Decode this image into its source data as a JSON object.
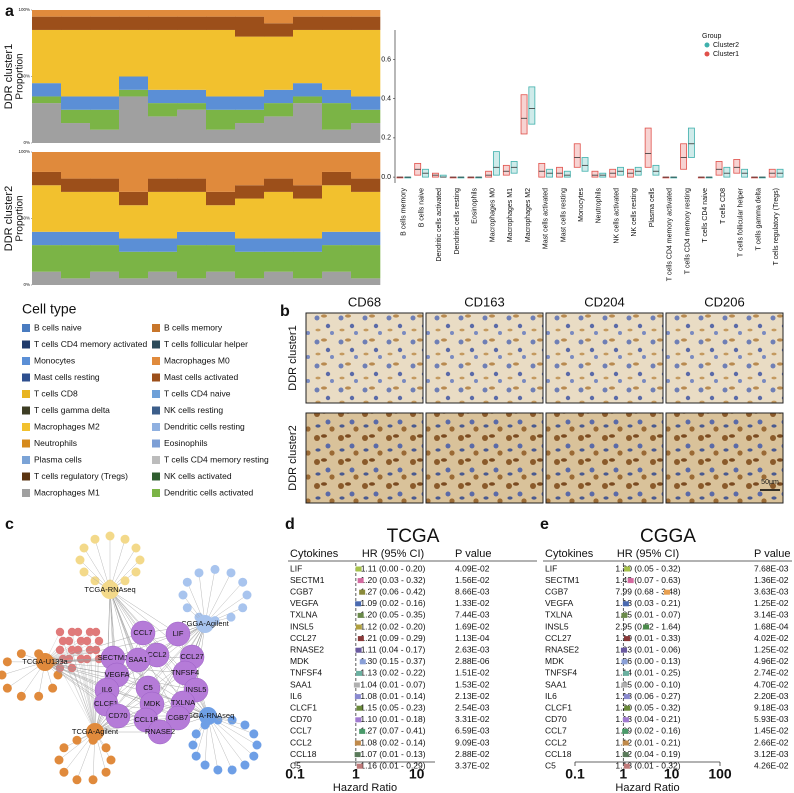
{
  "panel_labels": [
    "a",
    "b",
    "c",
    "d",
    "e"
  ],
  "cell_type_legend": {
    "title": "Cell type",
    "items": [
      {
        "name": "B cells naive",
        "color": "#4a7cc0"
      },
      {
        "name": "B cells memory",
        "color": "#c8762b"
      },
      {
        "name": "T cells CD4 memory activated",
        "color": "#1f3a6b"
      },
      {
        "name": "T cells follicular helper",
        "color": "#2b4a5a"
      },
      {
        "name": "Monocytes",
        "color": "#5b8fd6"
      },
      {
        "name": "Macrophages M0",
        "color": "#e08a3c"
      },
      {
        "name": "Mast cells resting",
        "color": "#2e4f8f"
      },
      {
        "name": "Mast cells activated",
        "color": "#9c4f1a"
      },
      {
        "name": "T cells CD8",
        "color": "#e8b420"
      },
      {
        "name": "T cells CD4 naive",
        "color": "#6ea0d8"
      },
      {
        "name": "T cells gamma delta",
        "color": "#3d3d24"
      },
      {
        "name": "NK cells resting",
        "color": "#3c5e8a"
      },
      {
        "name": "Macrophages M2",
        "color": "#f2c12e"
      },
      {
        "name": "Dendritic cells resting",
        "color": "#8fb0e0"
      },
      {
        "name": "Neutrophils",
        "color": "#d68a1c"
      },
      {
        "name": "Eosinophils",
        "color": "#7d9fd6"
      },
      {
        "name": "Plasma cells",
        "color": "#7ba3d6"
      },
      {
        "name": "T cells CD4 memory resting",
        "color": "#bcbcbc"
      },
      {
        "name": "T cells regulatory (Tregs)",
        "color": "#5a3310"
      },
      {
        "name": "NK cells activated",
        "color": "#2f5d2f"
      },
      {
        "name": "Macrophages M1",
        "color": "#a0a0a0"
      },
      {
        "name": "Dendritic cells activated",
        "color": "#7bb446"
      }
    ]
  },
  "chart_data": [
    {
      "type": "stacked_bar",
      "row_label": "DDR cluster1",
      "ylabel": "Proportion",
      "categories": [
        null,
        null,
        null,
        null,
        null,
        null,
        null,
        null,
        null,
        null,
        null,
        null
      ],
      "ylim": [
        0,
        1
      ],
      "yticks": [
        {
          "value": 0,
          "label": "0%"
        },
        {
          "value": 0.5,
          "label": "50%"
        },
        {
          "value": 1,
          "label": "100%"
        }
      ],
      "series": [
        {
          "name": "Macrophages M1",
          "color": "#a0a0a0",
          "values": [
            0.3,
            0.15,
            0.1,
            0.35,
            0.2,
            0.25,
            0.1,
            0.15,
            0.2,
            0.3,
            0.1,
            0.15
          ]
        },
        {
          "name": "Dendritic cells activated",
          "color": "#7bb446",
          "values": [
            0.05,
            0.1,
            0.15,
            0.05,
            0.1,
            0.05,
            0.15,
            0.1,
            0.1,
            0.05,
            0.2,
            0.1
          ]
        },
        {
          "name": "Monocytes",
          "color": "#5b8fd6",
          "values": [
            0.1,
            0.1,
            0.1,
            0.1,
            0.1,
            0.1,
            0.1,
            0.1,
            0.1,
            0.1,
            0.1,
            0.1
          ]
        },
        {
          "name": "Macrophages M2",
          "color": "#f2c12e",
          "values": [
            0.4,
            0.5,
            0.5,
            0.35,
            0.45,
            0.45,
            0.5,
            0.45,
            0.4,
            0.4,
            0.45,
            0.5
          ]
        },
        {
          "name": "Mast cells activated",
          "color": "#9c4f1a",
          "values": [
            0.1,
            0.1,
            0.1,
            0.1,
            0.1,
            0.1,
            0.1,
            0.15,
            0.1,
            0.1,
            0.1,
            0.1
          ]
        },
        {
          "name": "Macrophages M0",
          "color": "#e08a3c",
          "values": [
            0.05,
            0.05,
            0.05,
            0.05,
            0.05,
            0.05,
            0.05,
            0.05,
            0.1,
            0.05,
            0.05,
            0.05
          ]
        }
      ]
    },
    {
      "type": "stacked_bar",
      "row_label": "DDR cluster2",
      "ylabel": "Proportion",
      "categories": [
        null,
        null,
        null,
        null,
        null,
        null,
        null,
        null,
        null,
        null,
        null,
        null
      ],
      "ylim": [
        0,
        1
      ],
      "yticks": [
        {
          "value": 0,
          "label": "0%"
        },
        {
          "value": 0.5,
          "label": "50%"
        },
        {
          "value": 1,
          "label": "100%"
        }
      ],
      "series": [
        {
          "name": "Macrophages M1",
          "color": "#a0a0a0",
          "values": [
            0.1,
            0.05,
            0.1,
            0.05,
            0.1,
            0.05,
            0.1,
            0.05,
            0.1,
            0.05,
            0.1,
            0.05
          ]
        },
        {
          "name": "Dendritic cells activated",
          "color": "#7bb446",
          "values": [
            0.2,
            0.25,
            0.2,
            0.2,
            0.15,
            0.25,
            0.2,
            0.2,
            0.15,
            0.2,
            0.2,
            0.25
          ]
        },
        {
          "name": "Monocytes",
          "color": "#5b8fd6",
          "values": [
            0.1,
            0.1,
            0.1,
            0.1,
            0.1,
            0.1,
            0.1,
            0.1,
            0.1,
            0.1,
            0.1,
            0.1
          ]
        },
        {
          "name": "Macrophages M2",
          "color": "#f2c12e",
          "values": [
            0.35,
            0.3,
            0.3,
            0.25,
            0.35,
            0.3,
            0.2,
            0.3,
            0.35,
            0.3,
            0.35,
            0.3
          ]
        },
        {
          "name": "Mast cells activated",
          "color": "#9c4f1a",
          "values": [
            0.1,
            0.1,
            0.1,
            0.1,
            0.1,
            0.1,
            0.1,
            0.1,
            0.1,
            0.1,
            0.1,
            0.1
          ]
        },
        {
          "name": "Macrophages M0",
          "color": "#e08a3c",
          "values": [
            0.15,
            0.2,
            0.2,
            0.3,
            0.2,
            0.2,
            0.3,
            0.25,
            0.2,
            0.25,
            0.15,
            0.2
          ]
        }
      ]
    },
    {
      "type": "box",
      "legend_title": "Group",
      "ylim": [
        -0.03,
        0.75
      ],
      "yticks": [
        {
          "value": 0,
          "label": "0.0"
        },
        0.2,
        0.4,
        0.6
      ],
      "categories": [
        "B cells memory",
        "B cells naive",
        "Dendritic cells activated",
        "Dendritic cells resting",
        "Eosinophils",
        "Macrophages M0",
        "Macrophages M1",
        "Macrophages M2",
        "Mast cells activated",
        "Mast cells resting",
        "Monocytes",
        "Neutrophils",
        "NK cells activated",
        "NK cells resting",
        "Plasma cells",
        "T cells CD4 memory activated",
        "T cells CD4 memory resting",
        "T cells CD4 naive",
        "T cells CD8",
        "T cells follicular helper",
        "T cells gamma delta",
        "T cells regulatory (Tregs)"
      ],
      "series": [
        {
          "name": "Cluster2",
          "color": "#3fb0ac",
          "q1": [
            0,
            0,
            0,
            0,
            0,
            0.01,
            0.02,
            0.27,
            0,
            0,
            0.03,
            0,
            0.01,
            0.01,
            0.01,
            0,
            0.1,
            0,
            0,
            0,
            0,
            0
          ],
          "median": [
            0,
            0.02,
            0,
            0,
            0,
            0.05,
            0.05,
            0.35,
            0.02,
            0.01,
            0.06,
            0.01,
            0.03,
            0.03,
            0.03,
            0,
            0.17,
            0,
            0.02,
            0.02,
            0,
            0.02
          ],
          "q3": [
            0,
            0.04,
            0.01,
            0,
            0,
            0.13,
            0.08,
            0.46,
            0.04,
            0.03,
            0.1,
            0.02,
            0.05,
            0.05,
            0.06,
            0,
            0.25,
            0,
            0.05,
            0.04,
            0,
            0.04
          ]
        },
        {
          "name": "Cluster1",
          "color": "#e0504a",
          "q1": [
            0,
            0.01,
            0,
            0,
            0,
            0,
            0.01,
            0.22,
            0,
            0,
            0.05,
            0,
            0,
            0,
            0.05,
            0,
            0.04,
            0,
            0.01,
            0.02,
            0,
            0
          ],
          "median": [
            0,
            0.04,
            0.01,
            0,
            0,
            0.01,
            0.03,
            0.3,
            0.03,
            0.02,
            0.1,
            0.01,
            0.02,
            0.02,
            0.12,
            0,
            0.1,
            0,
            0.04,
            0.05,
            0,
            0.02
          ],
          "q3": [
            0,
            0.07,
            0.02,
            0,
            0,
            0.03,
            0.06,
            0.42,
            0.07,
            0.05,
            0.17,
            0.03,
            0.04,
            0.04,
            0.25,
            0,
            0.17,
            0,
            0.08,
            0.09,
            0,
            0.04
          ]
        }
      ]
    },
    {
      "type": "forest",
      "title": "TCGA",
      "headers": {
        "cytokines": "Cytokines",
        "hr": "HR (95% CI)",
        "p": "P value"
      },
      "xlabel": "Hazard Ratio",
      "log_scale": true,
      "xlim": [
        0.1,
        20
      ],
      "xticks": [
        0.1,
        1,
        10
      ],
      "ref_line": 1,
      "marker_colors": [
        "#a6c24a",
        "#d46aa0",
        "#8a8a3a",
        "#4a6ab0",
        "#6a8a4a",
        "#b0a040",
        "#8a3a3a",
        "#6a5aa0",
        "#8aa0d8",
        "#6ab0a0",
        "#b0b0b0",
        "#8a8ad0",
        "#6a8a3a",
        "#a07ad0",
        "#4a9a6a",
        "#c08a4a",
        "#5a7a5a",
        "#c07a7a"
      ],
      "rows": [
        {
          "cytokine": "LIF",
          "hr": 1.11,
          "hr_ci": "1.11 (0.00 - 0.20)",
          "p": "4.09E-02"
        },
        {
          "cytokine": "SECTM1",
          "hr": 1.2,
          "hr_ci": "1.20 (0.03 - 0.32)",
          "p": "1.56E-02"
        },
        {
          "cytokine": "CGB7",
          "hr": 1.27,
          "hr_ci": "1.27 (0.06 - 0.42)",
          "p": "8.66E-03"
        },
        {
          "cytokine": "VEGFA",
          "hr": 1.09,
          "hr_ci": "1.09 (0.02 - 0.16)",
          "p": "1.33E-02"
        },
        {
          "cytokine": "TXLNA",
          "hr": 1.2,
          "hr_ci": "1.20 (0.05 - 0.35)",
          "p": "7.44E-03"
        },
        {
          "cytokine": "INSL5",
          "hr": 1.12,
          "hr_ci": "1.12 (0.02 - 0.20)",
          "p": "1.69E-02"
        },
        {
          "cytokine": "CCL27",
          "hr": 1.21,
          "hr_ci": "1.21 (0.09 - 0.29)",
          "p": "1.13E-04"
        },
        {
          "cytokine": "RNASE2",
          "hr": 1.11,
          "hr_ci": "1.11 (0.04 - 0.17)",
          "p": "2.63E-03"
        },
        {
          "cytokine": "MDK",
          "hr": 1.3,
          "hr_ci": "1.30 (0.15 - 0.37)",
          "p": "2.88E-06"
        },
        {
          "cytokine": "TNFSF4",
          "hr": 1.13,
          "hr_ci": "1.13 (0.02 - 0.22)",
          "p": "1.51E-02"
        },
        {
          "cytokine": "SAA1",
          "hr": 1.04,
          "hr_ci": "1.04 (0.01 - 0.07)",
          "p": "1.53E-02"
        },
        {
          "cytokine": "IL6",
          "hr": 1.08,
          "hr_ci": "1.08 (0.01 - 0.14)",
          "p": "2.13E-02"
        },
        {
          "cytokine": "CLCF1",
          "hr": 1.15,
          "hr_ci": "1.15 (0.05 - 0.23)",
          "p": "2.54E-03"
        },
        {
          "cytokine": "CD70",
          "hr": 1.1,
          "hr_ci": "1.10 (0.01 - 0.18)",
          "p": "3.31E-02"
        },
        {
          "cytokine": "CCL7",
          "hr": 1.27,
          "hr_ci": "1.27 (0.07 - 0.41)",
          "p": "6.59E-03"
        },
        {
          "cytokine": "CCL2",
          "hr": 1.08,
          "hr_ci": "1.08 (0.02 - 0.14)",
          "p": "9.09E-03"
        },
        {
          "cytokine": "CCL18",
          "hr": 1.07,
          "hr_ci": "1.07 (0.01 - 0.13)",
          "p": "2.88E-02"
        },
        {
          "cytokine": "C5",
          "hr": 1.16,
          "hr_ci": "1.16 (0.01 - 0.29)",
          "p": "3.37E-02"
        }
      ]
    },
    {
      "type": "forest",
      "title": "CGGA",
      "headers": {
        "cytokines": "Cytokines",
        "hr": "HR (95% CI)",
        "p": "P value"
      },
      "xlabel": "Hazard Ratio",
      "log_scale": true,
      "xlim": [
        0.1,
        100
      ],
      "xticks": [
        0.1,
        1,
        10,
        100
      ],
      "ref_line": 1,
      "marker_colors": [
        "#a6c24a",
        "#d46aa0",
        "#e8a050",
        "#4a6ab0",
        "#6a8a4a",
        "#4a8a4a",
        "#8a3a3a",
        "#6a5aa0",
        "#8aa0d8",
        "#6ab0a0",
        "#b0b0b0",
        "#8a8ad0",
        "#6a8a3a",
        "#a07ad0",
        "#4a9a6a",
        "#c08a4a",
        "#5a7a5a",
        "#c07a7a"
      ],
      "rows": [
        {
          "cytokine": "LIF",
          "hr": 1.2,
          "hr_ci": "1.20 (0.05 - 0.32)",
          "p": "7.68E-03"
        },
        {
          "cytokine": "SECTM1",
          "hr": 1.42,
          "hr_ci": "1.42 (0.07 - 0.63)",
          "p": "1.36E-02"
        },
        {
          "cytokine": "CGB7",
          "hr": 7.99,
          "hr_ci": "7.99 (0.68 - 3.48)",
          "p": "3.63E-03"
        },
        {
          "cytokine": "VEGFA",
          "hr": 1.13,
          "hr_ci": "1.13 (0.03 - 0.21)",
          "p": "1.25E-02"
        },
        {
          "cytokine": "TXLNA",
          "hr": 1.05,
          "hr_ci": "1.05 (0.01 - 0.07)",
          "p": "3.14E-03"
        },
        {
          "cytokine": "INSL5",
          "hr": 2.95,
          "hr_ci": "2.95 (0.52 - 1.64)",
          "p": "1.68E-04"
        },
        {
          "cytokine": "CCL27",
          "hr": 1.19,
          "hr_ci": "1.19 (0.01 - 0.33)",
          "p": "4.02E-02"
        },
        {
          "cytokine": "RNASE2",
          "hr": 1.03,
          "hr_ci": "1.03 (0.01 - 0.06)",
          "p": "1.25E-02"
        },
        {
          "cytokine": "MDK",
          "hr": 1.06,
          "hr_ci": "1.06 (0.00 - 0.13)",
          "p": "4.96E-02"
        },
        {
          "cytokine": "TNFSF4",
          "hr": 1.14,
          "hr_ci": "1.14 (0.01 - 0.25)",
          "p": "2.74E-02"
        },
        {
          "cytokine": "SAA1",
          "hr": 1.05,
          "hr_ci": "1.05 (0.00 - 0.10)",
          "p": "4.70E-02"
        },
        {
          "cytokine": "IL6",
          "hr": 1.18,
          "hr_ci": "1.18 (0.06 - 0.27)",
          "p": "2.20E-03"
        },
        {
          "cytokine": "CLCF1",
          "hr": 1.2,
          "hr_ci": "1.20 (0.05 - 0.32)",
          "p": "9.18E-03"
        },
        {
          "cytokine": "CD70",
          "hr": 1.13,
          "hr_ci": "1.13 (0.04 - 0.21)",
          "p": "5.93E-03"
        },
        {
          "cytokine": "CCL7",
          "hr": 1.09,
          "hr_ci": "1.09 (0.02 - 0.16)",
          "p": "1.45E-02"
        },
        {
          "cytokine": "CCL2",
          "hr": 1.12,
          "hr_ci": "1.12 (0.01 - 0.21)",
          "p": "2.66E-02"
        },
        {
          "cytokine": "CCL18",
          "hr": 1.12,
          "hr_ci": "1.12 (0.04 - 0.19)",
          "p": "3.12E-03"
        },
        {
          "cytokine": "C5",
          "hr": 1.18,
          "hr_ci": "1.18 (0.01 - 0.32)",
          "p": "4.26E-02"
        }
      ]
    }
  ],
  "ihc": {
    "columns": [
      "CD68",
      "CD163",
      "CD204",
      "CD206"
    ],
    "rows": [
      "DDR cluster1",
      "DDR cluster2"
    ],
    "scale_bar": "50μm"
  },
  "network": {
    "nodes": [
      {
        "label": "TCGA-RNAseq"
      },
      {
        "label": "CGGA-Agilent"
      },
      {
        "label": "TCGA-U133a"
      },
      {
        "label": "TCGA-Agilent"
      },
      {
        "label": "CGGA-RNAseq"
      },
      {
        "label": "CCL7"
      },
      {
        "label": "LIF"
      },
      {
        "label": "CCL2"
      },
      {
        "label": "SECTM1"
      },
      {
        "label": "SAA1"
      },
      {
        "label": "CCL27"
      },
      {
        "label": "VEGFA"
      },
      {
        "label": "TNFSF4"
      },
      {
        "label": "IL6"
      },
      {
        "label": "INSL5"
      },
      {
        "label": "CLCF1"
      },
      {
        "label": "C5"
      },
      {
        "label": "CD70"
      },
      {
        "label": "MDK"
      },
      {
        "label": "TXLNA"
      },
      {
        "label": "CCL18"
      },
      {
        "label": "CGB7"
      },
      {
        "label": "RNASE2"
      }
    ]
  }
}
